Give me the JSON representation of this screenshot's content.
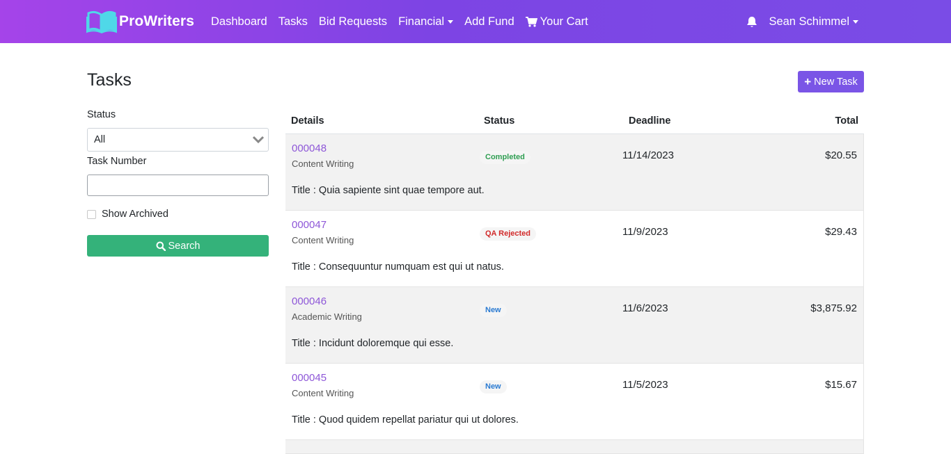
{
  "nav": {
    "brand": "ProWriters",
    "links": [
      "Dashboard",
      "Tasks",
      "Bid Requests",
      "Financial",
      "Add Fund",
      "Your Cart"
    ],
    "user": "Sean Schimmel",
    "accent": "#7d44e4"
  },
  "page": {
    "title": "Tasks",
    "new_task": "New Task"
  },
  "filters": {
    "status_label": "Status",
    "status_value": "All",
    "task_number_label": "Task Number",
    "task_number_value": "",
    "show_archived": "Show Archived",
    "search": "Search"
  },
  "table": {
    "headers": [
      "Details",
      "Status",
      "Deadline",
      "Total"
    ],
    "title_prefix": "Title :",
    "rows": [
      {
        "number": "000048",
        "category": "Content Writing",
        "status": "Completed",
        "deadline": "11/14/2023",
        "total": "$20.55",
        "title": "Quia sapiente sint quae tempore aut."
      },
      {
        "number": "000047",
        "category": "Content Writing",
        "status": "QA Rejected",
        "deadline": "11/9/2023",
        "total": "$29.43",
        "title": "Consequuntur numquam est qui ut natus."
      },
      {
        "number": "000046",
        "category": "Academic Writing",
        "status": "New",
        "deadline": "11/6/2023",
        "total": "$3,875.92",
        "title": "Incidunt doloremque qui esse."
      },
      {
        "number": "000045",
        "category": "Content Writing",
        "status": "New",
        "deadline": "11/5/2023",
        "total": "$15.67",
        "title": "Quod quidem repellat pariatur qui ut dolores."
      }
    ]
  }
}
